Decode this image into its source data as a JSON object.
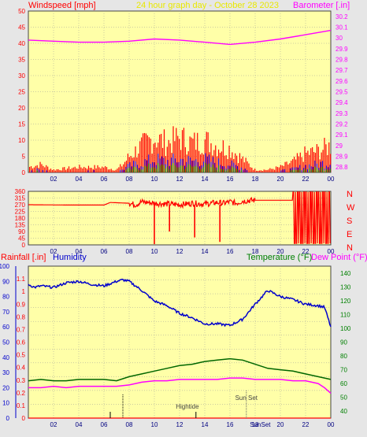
{
  "header": {
    "left_label": "Windspeed [mph]",
    "center_label": "24 hour graph day - October 28 2023",
    "right_label": "Barometer [.in]"
  },
  "colors": {
    "background": "#e6e6e6",
    "plot_bg": "#ffffa8",
    "grid": "#9a9a9a",
    "wind": "#ff0000",
    "gust_fill_blue": "#0000ff",
    "gust_fill_green": "#00a000",
    "barometer": "#ff00ff",
    "direction": "#ff0000",
    "humidity": "#0000cc",
    "rain": "#ff0000",
    "temperature": "#006600",
    "dewpoint": "#ff00ff",
    "axis_red": "#ff0000",
    "axis_green": "#008000",
    "axis_blue": "#0000cc",
    "axis_black": "#000000"
  },
  "x_ticks": [
    "02",
    "04",
    "06",
    "08",
    "10",
    "12",
    "14",
    "16",
    "18",
    "20",
    "22",
    "00"
  ],
  "chart_data": [
    {
      "type": "line",
      "title": "24 hour graph day - October 28 2023",
      "ylabel": "Windspeed [mph]",
      "ylim": [
        0,
        50
      ],
      "y_ticks": [
        "0",
        "5",
        "10",
        "15",
        "20",
        "25",
        "30",
        "35",
        "40",
        "45",
        "50"
      ],
      "y2label": "Barometer [.in]",
      "y2lim": [
        28.75,
        30.25
      ],
      "y2_ticks": [
        "28.8",
        "28.9",
        "29",
        "29.1",
        "29.2",
        "29.3",
        "29.4",
        "29.5",
        "29.6",
        "29.7",
        "29.8",
        "29.9",
        "30",
        "30.1",
        "30.2"
      ],
      "series": [
        {
          "name": "Windspeed",
          "x": [
            0,
            1,
            2,
            4,
            6,
            7,
            7.5,
            8,
            9,
            10,
            11,
            12,
            13,
            14,
            15,
            16,
            16.5,
            17,
            18,
            19,
            20,
            21,
            22,
            23,
            23.5,
            24
          ],
          "y": [
            1,
            2,
            0,
            1,
            1,
            0,
            2,
            4,
            6,
            8,
            7,
            8,
            7,
            8,
            6,
            5,
            4,
            3,
            0,
            0,
            1,
            2,
            4,
            5,
            6,
            6
          ]
        },
        {
          "name": "Gust",
          "x": [
            0,
            1,
            2,
            4,
            6,
            7,
            7.5,
            8,
            9,
            10,
            11,
            12,
            13,
            14,
            15,
            16,
            16.5,
            17,
            18,
            19,
            20,
            21,
            22,
            23,
            23.5,
            24
          ],
          "y": [
            2,
            3,
            1,
            2,
            2,
            1,
            3,
            6,
            10,
            13,
            11,
            13,
            11,
            12,
            10,
            9,
            7,
            5,
            1,
            1,
            2,
            4,
            7,
            8,
            9,
            10
          ]
        },
        {
          "name": "Barometer",
          "x": [
            0,
            2,
            4,
            6,
            8,
            10,
            12,
            14,
            16,
            18,
            20,
            22,
            24
          ],
          "y": [
            29.98,
            29.97,
            29.96,
            29.96,
            29.97,
            29.99,
            29.98,
            29.96,
            29.94,
            29.96,
            29.99,
            30.03,
            30.07
          ]
        }
      ]
    },
    {
      "type": "line",
      "ylabel": "Wind direction",
      "ylim": [
        0,
        360
      ],
      "y_ticks": [
        "0",
        "45",
        "90",
        "135",
        "180",
        "225",
        "270",
        "315",
        "360"
      ],
      "compass_labels": [
        "N",
        "W",
        "S",
        "E",
        "N"
      ],
      "series": [
        {
          "name": "Direction",
          "x": [
            0,
            3,
            5,
            6,
            6.5,
            8,
            8.5,
            9,
            10,
            11,
            12,
            13,
            14,
            15,
            15.5,
            16,
            16.5,
            17,
            18,
            20,
            21,
            22,
            23,
            24
          ],
          "y": [
            270,
            268,
            268,
            268,
            285,
            280,
            270,
            290,
            280,
            275,
            270,
            280,
            275,
            285,
            280,
            290,
            280,
            295,
            300,
            300,
            300,
            270,
            250,
            260
          ]
        }
      ]
    },
    {
      "type": "line",
      "ylabel": "Rainfall [.in]",
      "ylim": [
        0,
        1.2
      ],
      "y_ticks": [
        "0",
        "0.1",
        "0.2",
        "0.3",
        "0.4",
        "0.5",
        "0.6",
        "0.7",
        "0.8",
        "0.9",
        "1",
        "1.1"
      ],
      "outer_label": "Humidity",
      "outer_lim": [
        0,
        100
      ],
      "outer_ticks": [
        "0",
        "10",
        "20",
        "30",
        "40",
        "50",
        "60",
        "70",
        "80",
        "90",
        "100"
      ],
      "y2label": "Temperature (°F)",
      "y2label_b": "Dew Point (°F)",
      "y2lim": [
        35,
        145
      ],
      "y2_ticks": [
        "40",
        "50",
        "60",
        "70",
        "80",
        "90",
        "100",
        "110",
        "120",
        "130",
        "140"
      ],
      "annotations": [
        "Hightide",
        "Sun Set",
        "SunSet"
      ],
      "series": [
        {
          "name": "Humidity",
          "x": [
            0,
            0.5,
            1,
            2,
            3,
            4,
            5,
            6,
            7,
            7.5,
            8,
            9,
            10,
            11,
            12,
            13,
            14,
            15,
            16,
            16.5,
            17,
            18,
            19,
            20,
            21,
            22,
            23,
            23.5,
            24
          ],
          "y": [
            88,
            86,
            87,
            86,
            89,
            90,
            88,
            87,
            90,
            91,
            90,
            84,
            77,
            74,
            69,
            66,
            62,
            62,
            61,
            63,
            65,
            75,
            84,
            80,
            78,
            75,
            74,
            73,
            60
          ]
        },
        {
          "name": "Rainfall",
          "x": [
            0,
            24
          ],
          "y": [
            0,
            0
          ]
        },
        {
          "name": "Temperature",
          "x": [
            0,
            1,
            2,
            3,
            4,
            5,
            6,
            7,
            8,
            9,
            10,
            11,
            12,
            13,
            14,
            15,
            16,
            17,
            18,
            19,
            20,
            21,
            22,
            23,
            24
          ],
          "y": [
            62,
            63,
            62,
            62,
            63,
            63,
            63,
            62,
            65,
            67,
            69,
            71,
            73,
            74,
            76,
            77,
            78,
            77,
            74,
            71,
            70,
            69,
            67,
            65,
            63
          ]
        },
        {
          "name": "Dew Point",
          "x": [
            0,
            1,
            2,
            3,
            4,
            5,
            6,
            7,
            8,
            9,
            10,
            11,
            12,
            13,
            14,
            15,
            16,
            17,
            18,
            19,
            20,
            21,
            22,
            23,
            23.5,
            24
          ],
          "y": [
            57,
            57,
            58,
            57,
            58,
            58,
            58,
            58,
            59,
            61,
            62,
            62,
            63,
            63,
            63,
            63,
            64,
            64,
            63,
            63,
            63,
            62,
            62,
            60,
            57,
            53
          ]
        }
      ]
    }
  ]
}
